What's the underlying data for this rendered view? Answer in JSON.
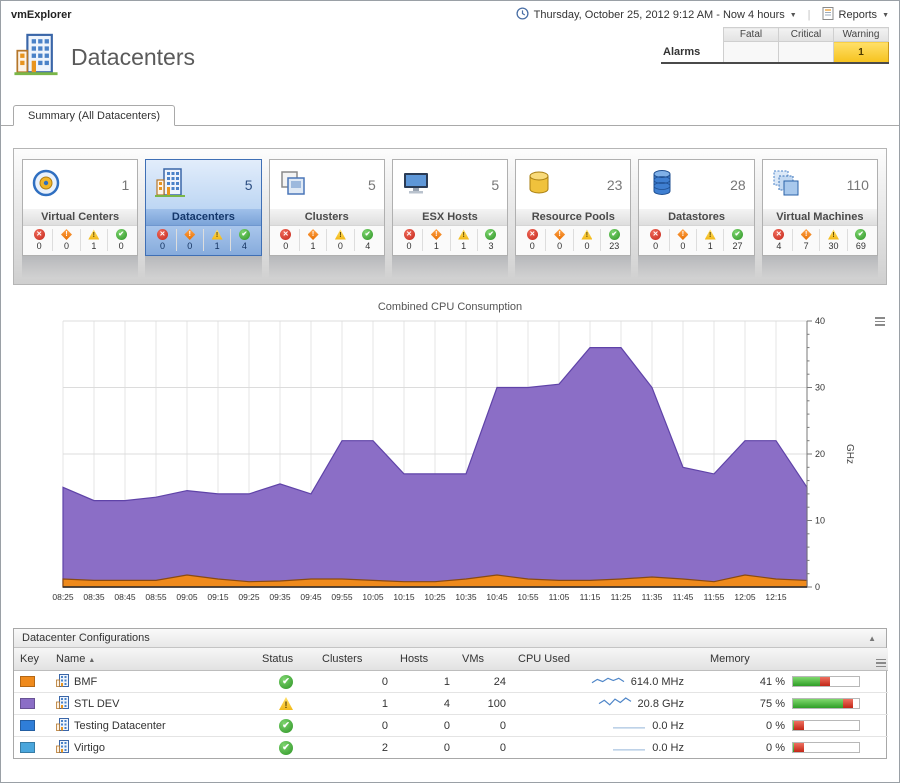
{
  "topbar": {
    "app_title": "vmExplorer",
    "time_range": "Thursday, October 25, 2012 9:12 AM - Now 4 hours",
    "reports_label": "Reports"
  },
  "header": {
    "title": "Datacenters",
    "alarms_table": {
      "row_label": "Alarms",
      "columns": [
        "Fatal",
        "Critical",
        "Warning"
      ],
      "fatal": "",
      "critical": "",
      "warning": "1"
    }
  },
  "tab": {
    "label": "Summary (All Datacenters)"
  },
  "tiles": [
    {
      "label": "Virtual Centers",
      "count": "1",
      "icon": "virtual-center-icon",
      "selected": false,
      "alarms": {
        "fatal": "0",
        "critical": "0",
        "warning": "1",
        "normal": "0"
      }
    },
    {
      "label": "Datacenters",
      "count": "5",
      "icon": "datacenter-icon",
      "selected": true,
      "alarms": {
        "fatal": "0",
        "critical": "0",
        "warning": "1",
        "normal": "4"
      }
    },
    {
      "label": "Clusters",
      "count": "5",
      "icon": "cluster-icon",
      "selected": false,
      "alarms": {
        "fatal": "0",
        "critical": "1",
        "warning": "0",
        "normal": "4"
      }
    },
    {
      "label": "ESX Hosts",
      "count": "5",
      "icon": "esx-host-icon",
      "selected": false,
      "alarms": {
        "fatal": "0",
        "critical": "1",
        "warning": "1",
        "normal": "3"
      }
    },
    {
      "label": "Resource Pools",
      "count": "23",
      "icon": "resource-pool-icon",
      "selected": false,
      "alarms": {
        "fatal": "0",
        "critical": "0",
        "warning": "0",
        "normal": "23"
      }
    },
    {
      "label": "Datastores",
      "count": "28",
      "icon": "datastore-icon",
      "selected": false,
      "alarms": {
        "fatal": "0",
        "critical": "0",
        "warning": "1",
        "normal": "27"
      }
    },
    {
      "label": "Virtual Machines",
      "count": "110",
      "icon": "virtual-machine-icon",
      "selected": false,
      "alarms": {
        "fatal": "4",
        "critical": "7",
        "warning": "30",
        "normal": "69"
      }
    }
  ],
  "chart_data": {
    "type": "area",
    "title": "Combined CPU Consumption",
    "ylabel": "GHz",
    "ylim": [
      0,
      40
    ],
    "yticks": [
      0,
      10,
      20,
      30,
      40
    ],
    "x": [
      "08:25",
      "08:35",
      "08:45",
      "08:55",
      "09:05",
      "09:15",
      "09:25",
      "09:35",
      "09:45",
      "09:55",
      "10:05",
      "10:15",
      "10:25",
      "10:35",
      "10:45",
      "10:55",
      "11:05",
      "11:15",
      "11:25",
      "11:35",
      "11:45",
      "11:55",
      "12:05",
      "12:15"
    ],
    "series": [
      {
        "name": "STL DEV",
        "color": "#8b6ec6",
        "stroke": "#5f43a8",
        "values": [
          15,
          13,
          13,
          13.5,
          14.5,
          14,
          14,
          15.5,
          14,
          22,
          22,
          17,
          17,
          17,
          30,
          30,
          30.5,
          36,
          36,
          30,
          18,
          17,
          22,
          22
        ],
        "end_value": 15
      },
      {
        "name": "BMF",
        "color": "#ef8a1c",
        "stroke": "#8a4a10",
        "values": [
          1.2,
          1,
          1,
          1,
          1.8,
          1.2,
          0.8,
          0.9,
          1.2,
          1.2,
          1,
          0.8,
          0.8,
          1.2,
          1.8,
          1.2,
          1,
          1,
          1.2,
          1.5,
          1.2,
          0.8,
          1.8,
          1.2
        ],
        "end_value": 1
      }
    ]
  },
  "panel": {
    "title": "Datacenter Configurations",
    "columns": [
      "Key",
      "Name",
      "Status",
      "Clusters",
      "Hosts",
      "VMs",
      "CPU Used",
      "Memory"
    ],
    "sorted_by": "Name",
    "rows": [
      {
        "key_color": "#ef8a1c",
        "name": "BMF",
        "status": "normal",
        "clusters": "0",
        "hosts": "1",
        "vms": "24",
        "cpu_used": "614.0 MHz",
        "cpu_spark": [
          2,
          5,
          3,
          6,
          4,
          6,
          3
        ],
        "memory_pct": 41,
        "memory_label": "41 %"
      },
      {
        "key_color": "#8b6ec6",
        "name": "STL DEV",
        "status": "warning",
        "clusters": "1",
        "hosts": "4",
        "vms": "100",
        "cpu_used": "20.8 GHz",
        "cpu_spark": [
          3,
          6,
          2,
          7,
          4,
          8,
          5
        ],
        "memory_pct": 75,
        "memory_label": "75 %"
      },
      {
        "key_color": "#2f7ed8",
        "name": "Testing Datacenter",
        "status": "normal",
        "clusters": "0",
        "hosts": "0",
        "vms": "0",
        "cpu_used": "0.0 Hz",
        "cpu_spark": [
          1,
          1,
          1,
          1,
          1,
          1,
          1
        ],
        "memory_pct": 0,
        "memory_label": "0 %"
      },
      {
        "key_color": "#4aa6dc",
        "name": "Virtigo",
        "status": "normal",
        "clusters": "2",
        "hosts": "0",
        "vms": "0",
        "cpu_used": "0.0 Hz",
        "cpu_spark": [
          1,
          1,
          1,
          1,
          1,
          1,
          1
        ],
        "memory_pct": 0,
        "memory_label": "0 %"
      }
    ]
  }
}
